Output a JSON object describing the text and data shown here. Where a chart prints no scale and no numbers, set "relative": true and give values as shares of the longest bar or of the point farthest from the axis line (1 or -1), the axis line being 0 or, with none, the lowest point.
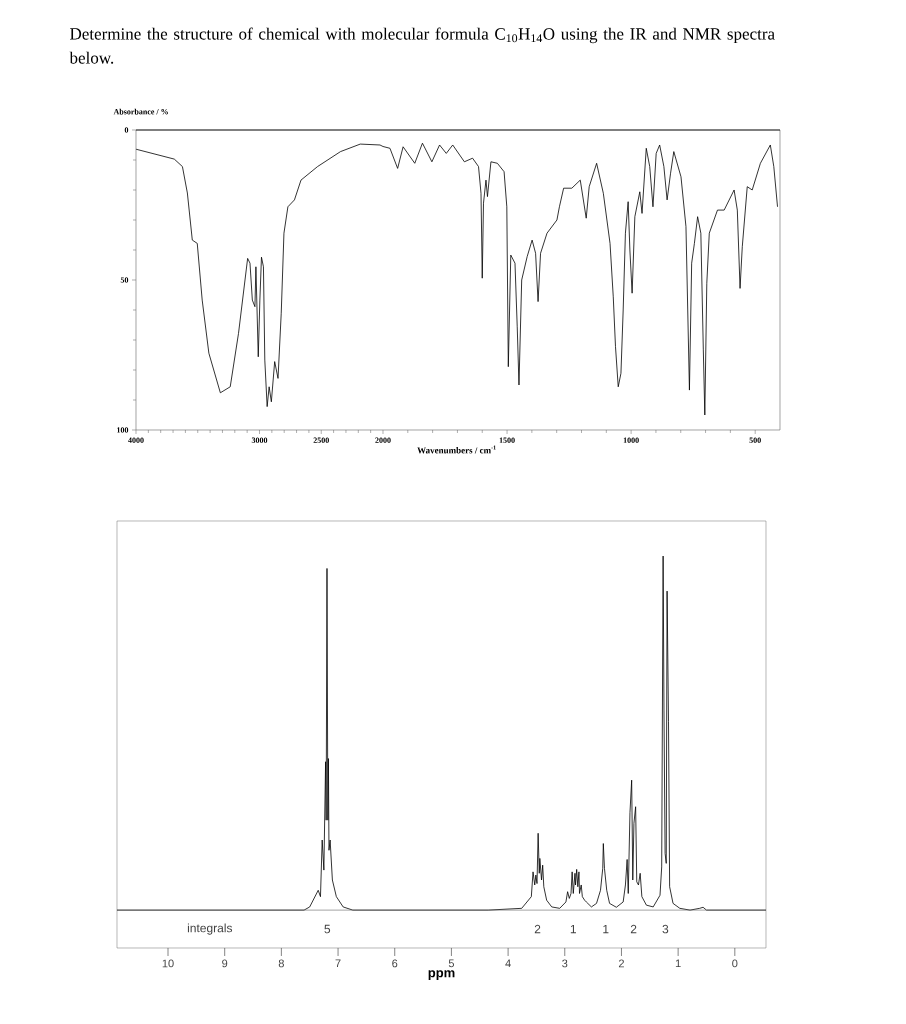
{
  "chart_data": [
    {
      "type": "line",
      "title": "Determine the structure of chemical with molecular formula C$_{10}$H$_{14}$O using the IR and NMR spectra below.",
      "ylabel": "Absorbance / %",
      "color": "#000000",
      "x": [
        4000,
        3690,
        3624,
        3584,
        3544,
        3504,
        3464,
        3410,
        3317,
        3237,
        3170,
        3096,
        3077,
        3058,
        3037,
        3029,
        3010,
        2997,
        2984,
        2968,
        2957,
        2938,
        2922,
        2904,
        2877,
        2850,
        2824,
        2802,
        2770,
        2717,
        2664,
        2530,
        2344,
        2184,
        2024,
        2000
      ],
      "values": [
        6.4,
        9.7,
        12.2,
        21,
        36.7,
        37.8,
        56.7,
        74.4,
        87.6,
        85.6,
        67.8,
        42.8,
        44.4,
        56.7,
        58.9,
        45.6,
        75.6,
        56.7,
        42.4,
        45.6,
        76.7,
        92.2,
        85.6,
        90.6,
        77.2,
        82.8,
        61.1,
        34.4,
        25.6,
        23.3,
        16.7,
        12.2,
        7.2,
        4.7,
        5.0,
        5.5
      ],
      "xlim": [
        4000,
        2000
      ],
      "xticks": [
        4000,
        {
          "value": 3900,
          "label": null
        },
        {
          "value": 3800,
          "label": null
        },
        {
          "value": 3700,
          "label": null
        },
        {
          "value": 3600,
          "label": null
        },
        {
          "value": 3500,
          "label": null
        },
        {
          "value": 3400,
          "label": null
        },
        {
          "value": 3300,
          "label": null
        },
        {
          "value": 3200,
          "label": null
        },
        {
          "value": 3100,
          "label": null
        },
        3000,
        {
          "value": 2900,
          "label": null
        },
        {
          "value": 2800,
          "label": null
        },
        {
          "value": 2700,
          "label": null
        },
        {
          "value": 2600,
          "label": null
        },
        2500,
        {
          "value": 2400,
          "label": null
        },
        {
          "value": 2300,
          "label": null
        },
        {
          "value": 2200,
          "label": null
        },
        {
          "value": 2100,
          "label": null
        },
        2000
      ],
      "ylim": [
        100,
        0
      ],
      "yticks": [
        0,
        {
          "value": 10,
          "label": null
        },
        {
          "value": 20,
          "label": null
        },
        {
          "value": 30,
          "label": null
        },
        {
          "value": 40,
          "label": null
        },
        50,
        {
          "value": 60,
          "label": null
        },
        {
          "value": 70,
          "label": null
        },
        {
          "value": 80,
          "label": null
        },
        {
          "value": 90,
          "label": null
        },
        100
      ]
    },
    {
      "type": "line",
      "xlabel": "Wavenumbers / cm$^{-1}$",
      "color": "#000000",
      "tick_labels": "x",
      "x": [
        2000,
        1972,
        1941,
        1919,
        1872,
        1841,
        1803,
        1772,
        1745,
        1719,
        1672,
        1639,
        1615,
        1605,
        1600,
        1595,
        1585,
        1579,
        1565,
        1539,
        1512,
        1501,
        1495,
        1485,
        1468,
        1459,
        1452,
        1441,
        1419,
        1399,
        1385,
        1375,
        1365,
        1339,
        1299,
        1289,
        1272,
        1239,
        1205,
        1181,
        1169,
        1139,
        1112,
        1085,
        1072,
        1063,
        1052,
        1041,
        1032,
        1023,
        1012,
        1005,
        996,
        985,
        965,
        956,
        939,
        925,
        912,
        899,
        885,
        868,
        855,
        841,
        828,
        799,
        779,
        765,
        756,
        745,
        732,
        719,
        709,
        703,
        695,
        685,
        652,
        625,
        585,
        572,
        561,
        552,
        532,
        512,
        479,
        439,
        425,
        410
      ],
      "values": [
        5.5,
        6.1,
        12.8,
        5.6,
        11.1,
        4.4,
        10.6,
        5.0,
        7.8,
        5.0,
        10.6,
        9.4,
        12.2,
        21.1,
        49.4,
        24.4,
        16.7,
        22.2,
        10.6,
        11.1,
        13.9,
        25.6,
        78.9,
        41.7,
        44.4,
        65.6,
        85.0,
        50.0,
        42.2,
        36.7,
        41.1,
        57.2,
        41.1,
        34.4,
        30.0,
        25.6,
        19.4,
        19.4,
        16.7,
        29.4,
        18.9,
        11.1,
        21.1,
        37.8,
        55.6,
        72.2,
        85.6,
        81.1,
        60.0,
        34.4,
        23.9,
        40.0,
        54.4,
        28.9,
        20.6,
        27.8,
        6.1,
        12.2,
        25.6,
        7.8,
        5.0,
        12.2,
        23.3,
        14.4,
        7.2,
        15.6,
        32.2,
        86.7,
        44.4,
        37.8,
        28.9,
        34.4,
        73.3,
        95.0,
        51.1,
        34.4,
        26.7,
        26.7,
        20.0,
        26.7,
        52.8,
        38.9,
        18.9,
        20.0,
        11.1,
        5.0,
        12.2,
        25.6
      ],
      "xlim": [
        2000,
        400
      ],
      "xticks": [
        {
          "value": 1900,
          "label": null
        },
        {
          "value": 1800,
          "label": null
        },
        {
          "value": 1700,
          "label": null
        },
        {
          "value": 1600,
          "label": null
        },
        1500,
        {
          "value": 1400,
          "label": null
        },
        {
          "value": 1300,
          "label": null
        },
        {
          "value": 1200,
          "label": null
        },
        {
          "value": 1100,
          "label": null
        },
        1000,
        {
          "value": 900,
          "label": null
        },
        {
          "value": 800,
          "label": null
        },
        {
          "value": 700,
          "label": null
        },
        {
          "value": 600,
          "label": null
        },
        500
      ],
      "ylim": [
        100,
        0
      ]
    },
    {
      "type": "line",
      "relative": true,
      "xlabel": "ppm",
      "color": "#000000",
      "x": [
        10.9,
        7.6,
        7.5,
        7.35,
        7.31,
        7.28,
        7.25,
        7.22,
        7.21,
        7.195,
        7.18,
        7.17,
        7.16,
        7.14,
        7.1,
        7.03,
        6.91,
        6.74,
        4.35,
        3.76,
        3.59,
        3.56,
        3.53,
        3.51,
        3.49,
        3.47,
        3.45,
        3.44,
        3.41,
        3.39,
        3.37,
        3.32,
        3.23,
        3.09,
        2.98,
        2.95,
        2.92,
        2.89,
        2.87,
        2.85,
        2.82,
        2.81,
        2.79,
        2.77,
        2.75,
        2.74,
        2.71,
        2.69,
        2.65,
        2.62,
        2.53,
        2.44,
        2.37,
        2.33,
        2.32,
        2.3,
        2.26,
        2.21,
        2.09,
        1.97,
        1.93,
        1.9,
        1.88,
        1.85,
        1.82,
        1.8,
        1.78,
        1.75,
        1.73,
        1.7,
        1.67,
        1.64,
        1.56,
        1.44,
        1.32,
        1.29,
        1.265,
        1.25,
        1.23,
        1.21,
        1.195,
        1.17,
        1.15,
        1.09,
        0.97,
        0.79,
        0.62,
        0.56,
        0.5,
        -0.55
      ],
      "values": [
        0,
        0,
        0.009,
        0.056,
        0.038,
        0.198,
        0.113,
        0.419,
        0.254,
        0.965,
        0.254,
        0.428,
        0.169,
        0.198,
        0.085,
        0.038,
        0.009,
        0,
        0,
        0.005,
        0.038,
        0.108,
        0.071,
        0.099,
        0.075,
        0.217,
        0.104,
        0.146,
        0.085,
        0.127,
        0.066,
        0.028,
        0.009,
        0.005,
        0.023,
        0.052,
        0.033,
        0.047,
        0.108,
        0.047,
        0.104,
        0.071,
        0.115,
        0.066,
        0.108,
        0.047,
        0.071,
        0.038,
        0.028,
        0.023,
        0.009,
        0.019,
        0.056,
        0.118,
        0.188,
        0.118,
        0.056,
        0.019,
        0.008,
        0.023,
        0.071,
        0.143,
        0.047,
        0.275,
        0.367,
        0.085,
        0.245,
        0.292,
        0.08,
        0.071,
        0.104,
        0.038,
        0.014,
        0.009,
        0.042,
        0.122,
        1.0,
        0.565,
        0.16,
        0.132,
        0.901,
        0.532,
        0.066,
        0.019,
        0.005,
        0,
        0.005,
        0.008,
        0,
        0
      ],
      "xlim": [
        10.9,
        -0.55
      ],
      "xticks": [
        10,
        9,
        8,
        7,
        6,
        5,
        4,
        3,
        2,
        1,
        0
      ],
      "annotations": [
        "integrals",
        "5",
        "2",
        "1",
        "1",
        "2",
        "3"
      ]
    }
  ]
}
